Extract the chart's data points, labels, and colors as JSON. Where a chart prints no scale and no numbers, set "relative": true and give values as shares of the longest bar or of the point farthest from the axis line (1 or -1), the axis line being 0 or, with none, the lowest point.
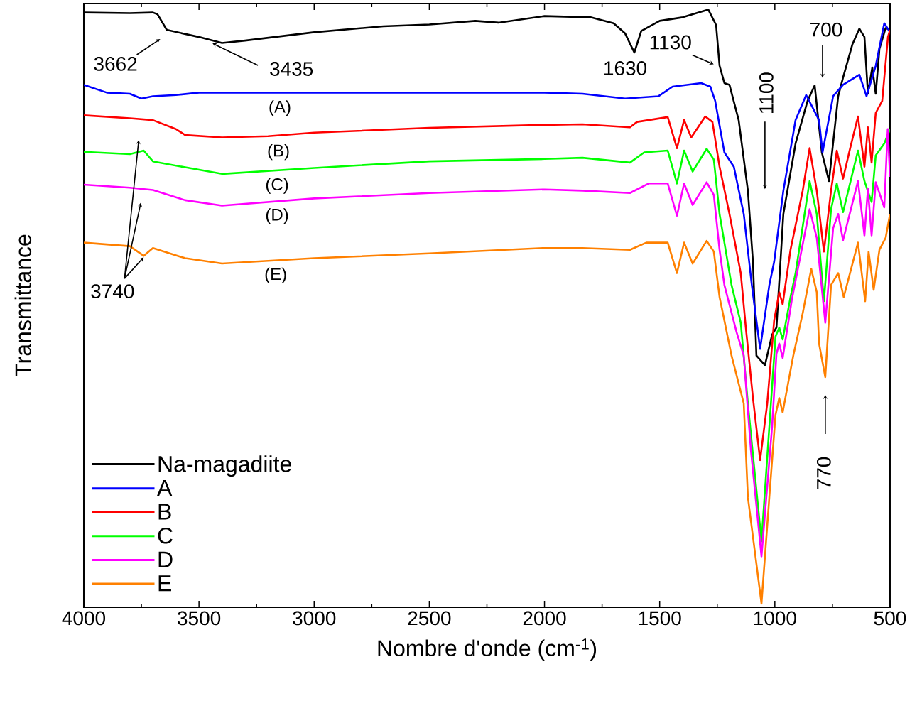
{
  "chart_data": {
    "type": "line",
    "relative": true,
    "xlabel": "Nombre d'onde (cm$^{-1}$)",
    "ylabel": "Transmittance",
    "xlim": [
      4000,
      500
    ],
    "xticks": [
      4000,
      3500,
      3000,
      2500,
      2000,
      1500,
      1000,
      500
    ],
    "legend": "bottom left",
    "series": [
      {
        "name": "Na-magadiite",
        "color": "#000000",
        "x": [
          4000,
          3800,
          3700,
          3680,
          3640,
          3500,
          3400,
          3300,
          3000,
          2700,
          2500,
          2300,
          2200,
          2000,
          1800,
          1700,
          1650,
          1610,
          1580,
          1500,
          1400,
          1289,
          1255,
          1240,
          1219,
          1197,
          1157,
          1117,
          1095,
          1080,
          1043,
          1012,
          993,
          963,
          910,
          858,
          827,
          796,
          765,
          725,
          704,
          663,
          633,
          611,
          596,
          577,
          562,
          546,
          519,
          500
        ],
        "values": [
          0.995,
          0.994,
          0.995,
          0.992,
          0.966,
          0.954,
          0.944,
          0.948,
          0.962,
          0.972,
          0.975,
          0.981,
          0.978,
          0.989,
          0.987,
          0.977,
          0.96,
          0.928,
          0.964,
          0.981,
          0.987,
          1.0,
          0.974,
          0.906,
          0.877,
          0.874,
          0.815,
          0.697,
          0.578,
          0.421,
          0.405,
          0.456,
          0.468,
          0.658,
          0.776,
          0.847,
          0.873,
          0.761,
          0.713,
          0.855,
          0.886,
          0.942,
          0.968,
          0.954,
          0.859,
          0.903,
          0.859,
          0.934,
          0.969,
          0.966
        ]
      },
      {
        "name": "A",
        "color": "#0000ff",
        "x": [
          4000,
          3900,
          3800,
          3750,
          3700,
          3600,
          3500,
          3000,
          2500,
          2000,
          1835,
          1650,
          1505,
          1444,
          1320,
          1280,
          1259,
          1219,
          1178,
          1135,
          1100,
          1064,
          1024,
          1003,
          963,
          910,
          864,
          808,
          793,
          747,
          704,
          633,
          602,
          562,
          525,
          500
        ],
        "values": [
          0.874,
          0.861,
          0.859,
          0.851,
          0.855,
          0.857,
          0.861,
          0.861,
          0.861,
          0.861,
          0.859,
          0.851,
          0.855,
          0.871,
          0.877,
          0.871,
          0.847,
          0.761,
          0.737,
          0.658,
          0.539,
          0.432,
          0.539,
          0.578,
          0.697,
          0.815,
          0.857,
          0.815,
          0.761,
          0.855,
          0.874,
          0.891,
          0.855,
          0.906,
          0.977,
          0.962
        ]
      },
      {
        "name": "B",
        "color": "#ff0000",
        "x": [
          4000,
          3800,
          3700,
          3600,
          3560,
          3400,
          3200,
          3000,
          2500,
          2000,
          1835,
          1629,
          1598,
          1465,
          1425,
          1394,
          1363,
          1302,
          1271,
          1240,
          1197,
          1148,
          1126,
          1095,
          1064,
          1033,
          1003,
          981,
          966,
          932,
          879,
          849,
          818,
          787,
          756,
          731,
          704,
          673,
          639,
          611,
          596,
          580,
          562,
          534,
          509,
          500
        ],
        "values": [
          0.823,
          0.818,
          0.815,
          0.8,
          0.79,
          0.786,
          0.788,
          0.794,
          0.802,
          0.807,
          0.808,
          0.803,
          0.812,
          0.82,
          0.768,
          0.815,
          0.786,
          0.821,
          0.812,
          0.737,
          0.658,
          0.559,
          0.468,
          0.35,
          0.246,
          0.341,
          0.48,
          0.527,
          0.507,
          0.598,
          0.697,
          0.768,
          0.697,
          0.595,
          0.697,
          0.764,
          0.717,
          0.768,
          0.821,
          0.737,
          0.803,
          0.744,
          0.827,
          0.847,
          0.954,
          0.966
        ]
      },
      {
        "name": "C",
        "color": "#00ff00",
        "x": [
          4000,
          3800,
          3740,
          3700,
          3560,
          3400,
          3000,
          2500,
          2000,
          1835,
          1629,
          1567,
          1465,
          1425,
          1394,
          1357,
          1296,
          1265,
          1240,
          1188,
          1148,
          1117,
          1058,
          1024,
          997,
          981,
          966,
          932,
          910,
          849,
          818,
          787,
          756,
          731,
          704,
          639,
          611,
          580,
          562,
          525,
          500
        ],
        "values": [
          0.762,
          0.758,
          0.764,
          0.746,
          0.736,
          0.725,
          0.735,
          0.746,
          0.75,
          0.752,
          0.744,
          0.761,
          0.764,
          0.709,
          0.764,
          0.729,
          0.767,
          0.749,
          0.658,
          0.539,
          0.476,
          0.341,
          0.11,
          0.302,
          0.453,
          0.468,
          0.448,
          0.519,
          0.559,
          0.713,
          0.658,
          0.512,
          0.666,
          0.709,
          0.661,
          0.764,
          0.713,
          0.678,
          0.756,
          0.776,
          0.8
        ]
      },
      {
        "name": "D",
        "color": "#ff00ff",
        "x": [
          4000,
          3800,
          3700,
          3560,
          3400,
          3000,
          2500,
          2000,
          1835,
          1629,
          1548,
          1465,
          1425,
          1394,
          1357,
          1296,
          1265,
          1240,
          1219,
          1166,
          1135,
          1104,
          1058,
          1012,
          993,
          981,
          966,
          926,
          849,
          818,
          781,
          747,
          725,
          704,
          639,
          611,
          596,
          580,
          562,
          525,
          510,
          500
        ],
        "values": [
          0.707,
          0.702,
          0.698,
          0.681,
          0.672,
          0.684,
          0.693,
          0.699,
          0.697,
          0.693,
          0.709,
          0.709,
          0.655,
          0.709,
          0.673,
          0.711,
          0.69,
          0.598,
          0.539,
          0.46,
          0.421,
          0.263,
          0.085,
          0.302,
          0.424,
          0.441,
          0.417,
          0.515,
          0.666,
          0.618,
          0.476,
          0.634,
          0.658,
          0.614,
          0.713,
          0.622,
          0.7,
          0.622,
          0.711,
          0.669,
          0.8,
          0.72
        ]
      },
      {
        "name": "E",
        "color": "#ff8000",
        "x": [
          4000,
          3800,
          3740,
          3700,
          3560,
          3400,
          3000,
          2500,
          2000,
          1835,
          1629,
          1558,
          1465,
          1425,
          1394,
          1357,
          1296,
          1265,
          1240,
          1188,
          1135,
          1117,
          1058,
          1024,
          997,
          981,
          966,
          920,
          879,
          842,
          818,
          808,
          781,
          756,
          725,
          701,
          639,
          608,
          593,
          571,
          546,
          519,
          500
        ],
        "values": [
          0.61,
          0.604,
          0.588,
          0.601,
          0.584,
          0.575,
          0.584,
          0.592,
          0.601,
          0.601,
          0.598,
          0.61,
          0.61,
          0.559,
          0.61,
          0.575,
          0.613,
          0.595,
          0.519,
          0.421,
          0.341,
          0.184,
          0.006,
          0.184,
          0.322,
          0.35,
          0.326,
          0.421,
          0.492,
          0.566,
          0.527,
          0.441,
          0.385,
          0.539,
          0.559,
          0.519,
          0.61,
          0.512,
          0.595,
          0.531,
          0.598,
          0.618,
          0.658
        ]
      }
    ],
    "annotations": [
      {
        "text": "3662",
        "x": 3662,
        "y": 0.972
      },
      {
        "text": "3435",
        "x": 3435,
        "y": 0.947
      },
      {
        "text": "1630",
        "x": 1610,
        "y": 0.928
      },
      {
        "text": "1130",
        "x": 1250,
        "y": 0.906
      },
      "700",
      "1100",
      "770",
      {
        "text": "3740",
        "x": 3740,
        "y": 0.588
      },
      {
        "text": "(A)",
        "x": 3149,
        "y": 0.861
      },
      {
        "text": "(B)",
        "x": 3155,
        "y": 0.79
      },
      {
        "text": "(C)",
        "x": 3161,
        "y": 0.73
      },
      {
        "text": "(D)",
        "x": 3161,
        "y": 0.678
      },
      {
        "text": "(E)",
        "x": 3167,
        "y": 0.58
      }
    ]
  }
}
